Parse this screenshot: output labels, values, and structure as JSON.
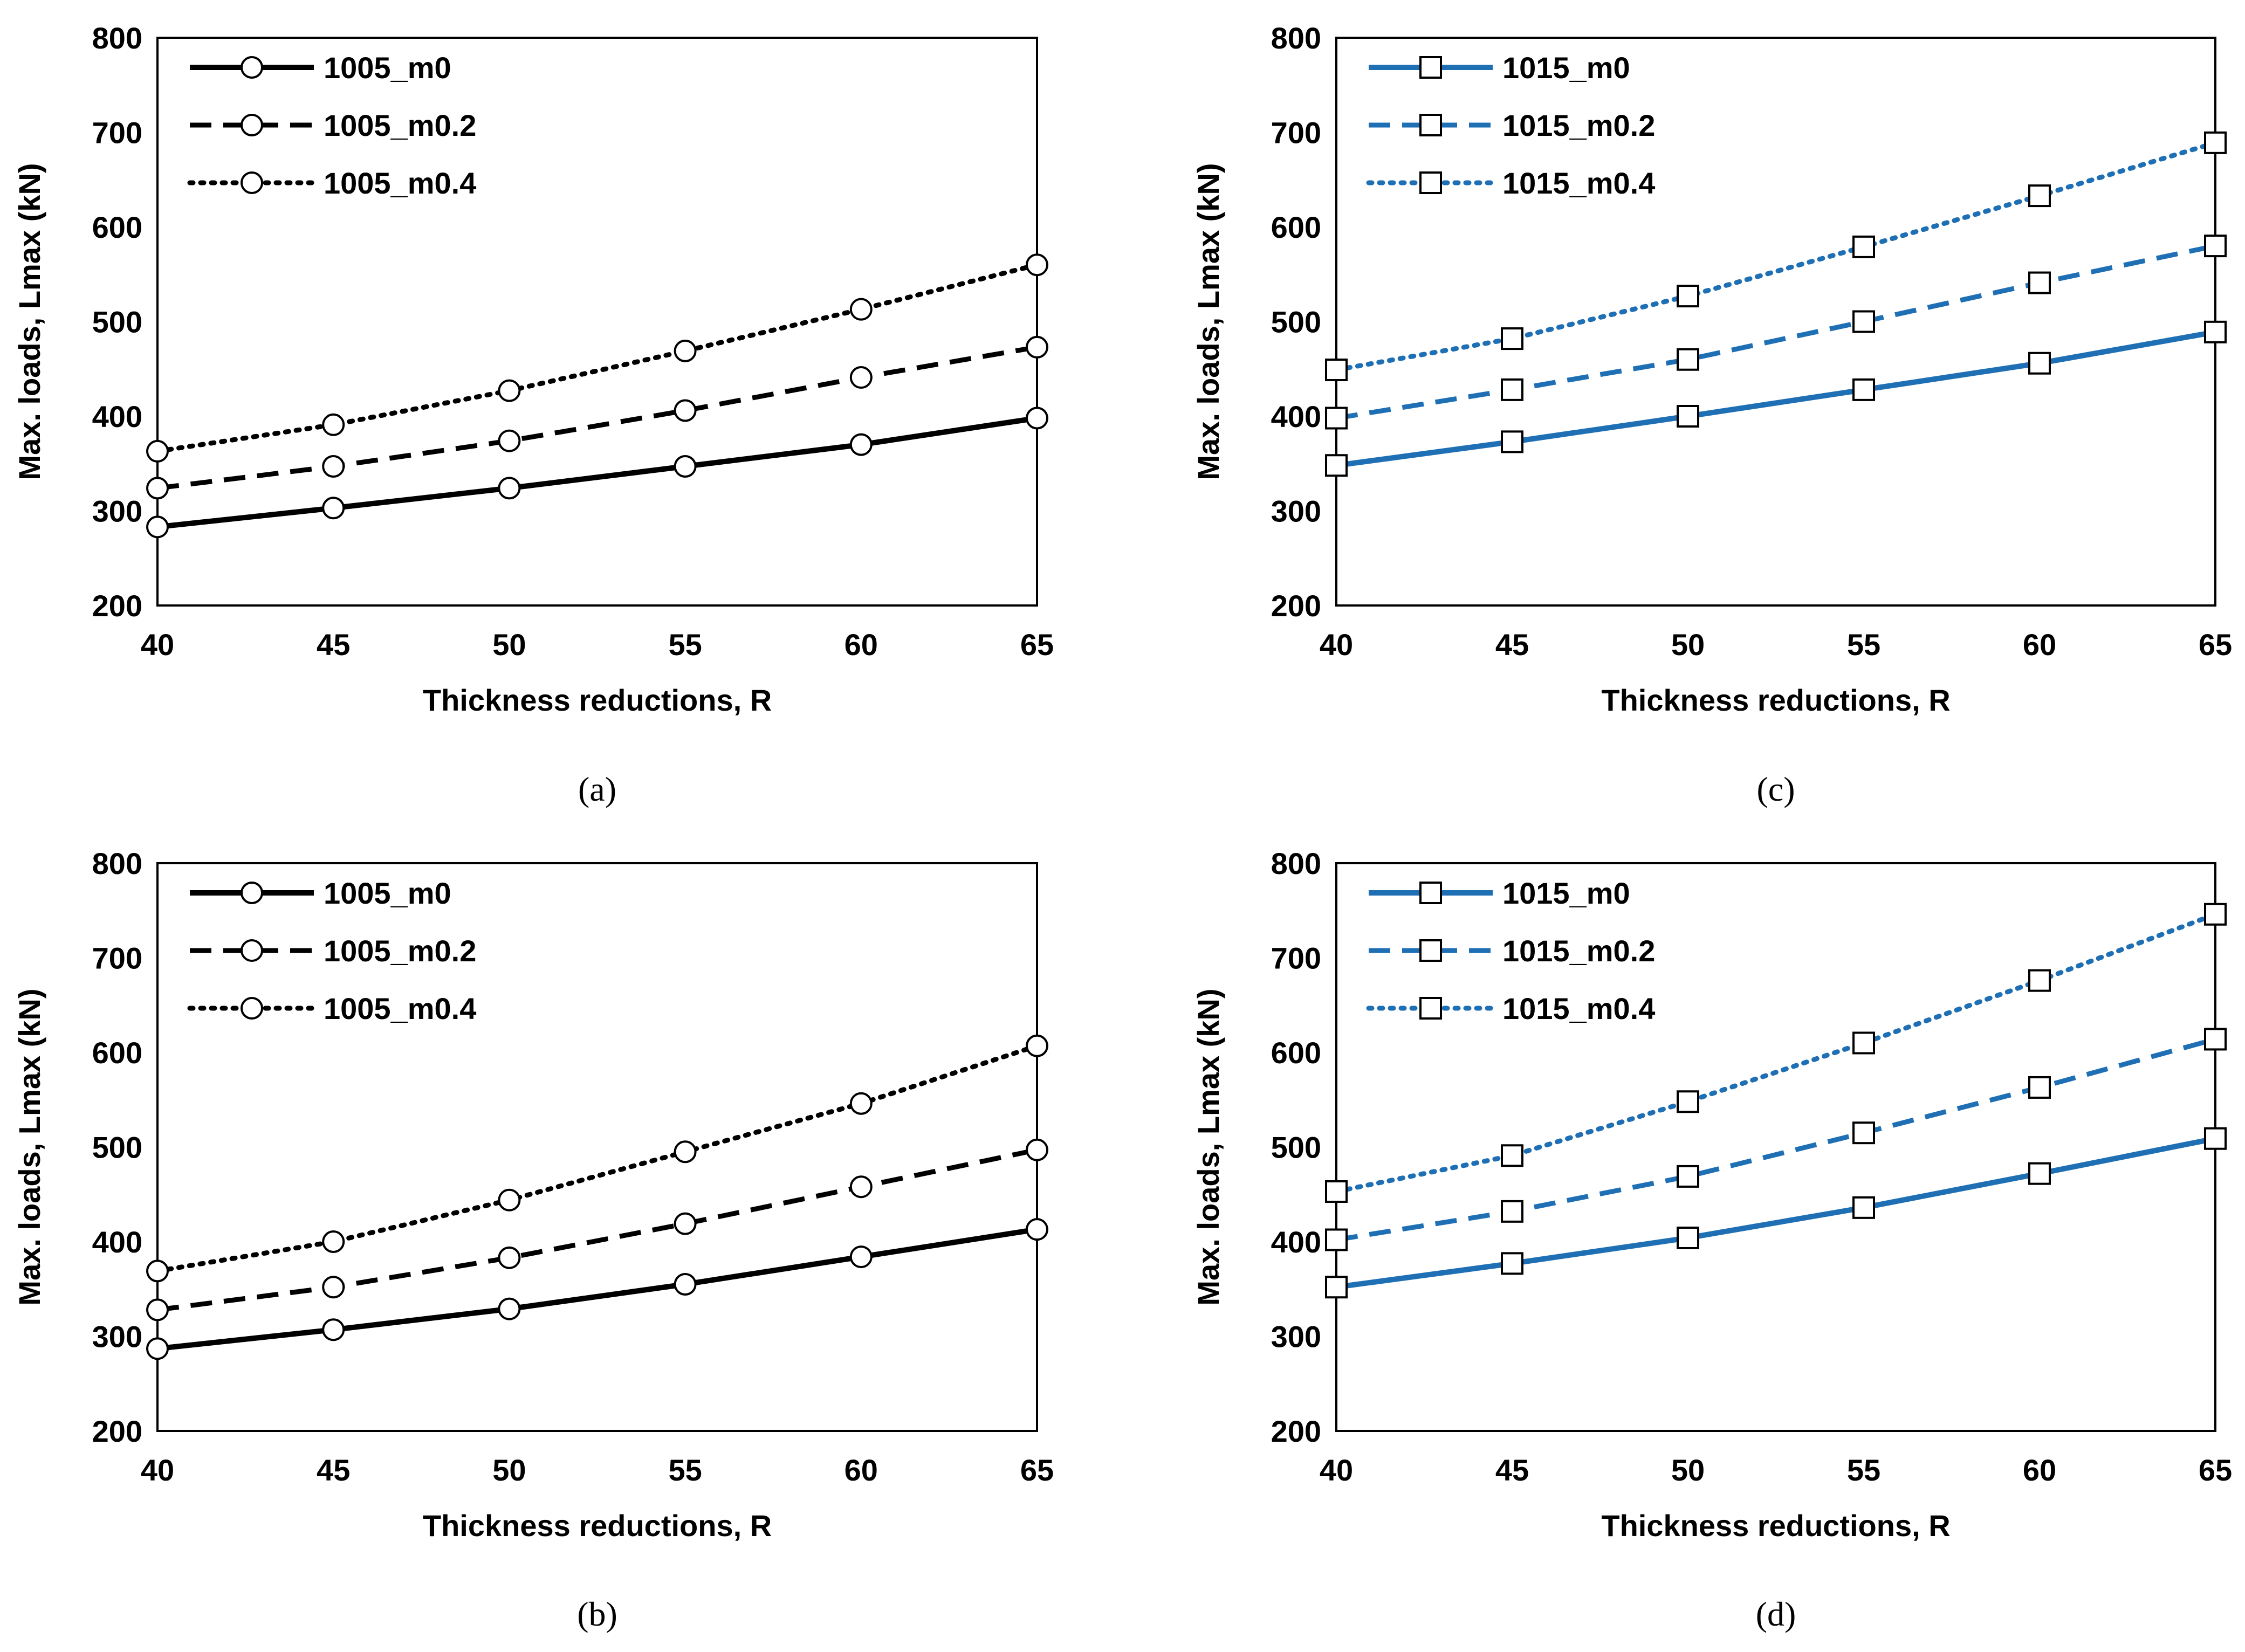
{
  "chart_data": [
    {
      "id": "a",
      "panel_label": "(a)",
      "type": "line",
      "color": "#000000",
      "marker": "circle",
      "x": [
        40,
        45,
        50,
        55,
        60,
        65
      ],
      "xlim": [
        40,
        65
      ],
      "ylim": [
        200,
        800
      ],
      "x_ticks": [
        "40",
        "45",
        "50",
        "55",
        "60",
        "65"
      ],
      "y_ticks": [
        "800",
        "700",
        "600",
        "500",
        "400",
        "300",
        "200"
      ],
      "xlabel": "Thickness reductions, R",
      "ylabel": "Max. loads, Lmax (kN)",
      "legend_position": "top-left",
      "series": [
        {
          "name": "1005_m0",
          "dash": "solid",
          "values": [
            283,
            303,
            324,
            347,
            370,
            398
          ]
        },
        {
          "name": "1005_m0.2",
          "dash": "dashed",
          "values": [
            324,
            347,
            374,
            406,
            441,
            473
          ]
        },
        {
          "name": "1005_m0.4",
          "dash": "dotted",
          "values": [
            363,
            391,
            427,
            469,
            513,
            560
          ]
        }
      ]
    },
    {
      "id": "c",
      "panel_label": "(c)",
      "type": "line",
      "color": "#1f6fb5",
      "marker": "square",
      "x": [
        40,
        45,
        50,
        55,
        60,
        65
      ],
      "xlim": [
        40,
        65
      ],
      "ylim": [
        200,
        800
      ],
      "x_ticks": [
        "40",
        "45",
        "50",
        "55",
        "60",
        "65"
      ],
      "y_ticks": [
        "800",
        "700",
        "600",
        "500",
        "400",
        "300",
        "200"
      ],
      "xlabel": "Thickness reductions, R",
      "ylabel": "Max. loads, Lmax (kN)",
      "legend_position": "top-left",
      "series": [
        {
          "name": "1015_m0",
          "dash": "solid",
          "values": [
            348,
            373,
            400,
            428,
            456,
            489
          ]
        },
        {
          "name": "1015_m0.2",
          "dash": "dashed",
          "values": [
            398,
            428,
            460,
            500,
            541,
            580
          ]
        },
        {
          "name": "1015_m0.4",
          "dash": "dotted",
          "values": [
            449,
            482,
            527,
            579,
            633,
            689
          ]
        }
      ]
    },
    {
      "id": "b",
      "panel_label": "(b)",
      "type": "line",
      "color": "#000000",
      "marker": "circle",
      "x": [
        40,
        45,
        50,
        55,
        60,
        65
      ],
      "xlim": [
        40,
        65
      ],
      "ylim": [
        200,
        800
      ],
      "x_ticks": [
        "40",
        "45",
        "50",
        "55",
        "60",
        "65"
      ],
      "y_ticks": [
        "800",
        "700",
        "600",
        "500",
        "400",
        "300",
        "200"
      ],
      "xlabel": "Thickness reductions, R",
      "ylabel": "Max. loads, Lmax (kN)",
      "legend_position": "top-left",
      "series": [
        {
          "name": "1005_m0",
          "dash": "solid",
          "values": [
            287,
            307,
            329,
            355,
            384,
            413
          ]
        },
        {
          "name": "1005_m0.2",
          "dash": "dashed",
          "values": [
            328,
            352,
            383,
            419,
            458,
            497
          ]
        },
        {
          "name": "1005_m0.4",
          "dash": "dotted",
          "values": [
            369,
            400,
            444,
            495,
            546,
            607
          ]
        }
      ]
    },
    {
      "id": "d",
      "panel_label": "(d)",
      "type": "line",
      "color": "#1f6fb5",
      "marker": "square",
      "x": [
        40,
        45,
        50,
        55,
        60,
        65
      ],
      "xlim": [
        40,
        65
      ],
      "ylim": [
        200,
        800
      ],
      "x_ticks": [
        "40",
        "45",
        "50",
        "55",
        "60",
        "65"
      ],
      "y_ticks": [
        "800",
        "700",
        "600",
        "500",
        "400",
        "300",
        "200"
      ],
      "xlabel": "Thickness reductions, R",
      "ylabel": "Max. loads, Lmax (kN)",
      "legend_position": "top-left",
      "series": [
        {
          "name": "1015_m0",
          "dash": "solid",
          "values": [
            352,
            377,
            404,
            436,
            472,
            509
          ]
        },
        {
          "name": "1015_m0.2",
          "dash": "dashed",
          "values": [
            402,
            432,
            469,
            515,
            563,
            614
          ]
        },
        {
          "name": "1015_m0.4",
          "dash": "dotted",
          "values": [
            453,
            491,
            548,
            610,
            676,
            746
          ]
        }
      ]
    }
  ]
}
